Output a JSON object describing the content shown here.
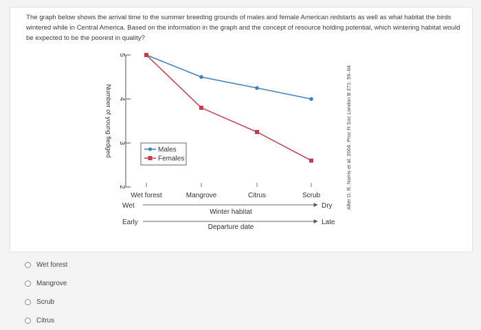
{
  "question": "The graph below shows the arrival time to the summer breeding grounds of males and female American redstarts as well as what habitat the birds wintered while in Central America. Based on the information in the graph and the concept of resource holding potential, which wintering habitat would be expected to be the poorest in quality?",
  "chart_data": {
    "type": "line",
    "categories": [
      "Wet forest",
      "Mangrove",
      "Citrus",
      "Scrub"
    ],
    "series": [
      {
        "name": "Males",
        "values": [
          5.0,
          4.5,
          4.25,
          4.0
        ],
        "color": "#3f7fbf",
        "marker": "circle"
      },
      {
        "name": "Females",
        "values": [
          5.0,
          3.8,
          3.25,
          2.6
        ],
        "color": "#c63a4c",
        "marker": "square"
      }
    ],
    "ylabel": "Number of young fledged",
    "yticks": [
      "2",
      "3",
      "4",
      "5"
    ],
    "ylim": [
      2,
      5
    ],
    "legend_position": "inside-left",
    "axis_arrows": [
      {
        "start": "Wet",
        "end": "Dry",
        "label": "Winter habitat"
      },
      {
        "start": "Early",
        "end": "Late",
        "label": "Departure date"
      }
    ],
    "source": "After D. R. Norris et al. 2004. Proc R Soc London B 271: 59–64"
  },
  "options": [
    "Wet forest",
    "Mangrove",
    "Scrub",
    "Citrus"
  ]
}
